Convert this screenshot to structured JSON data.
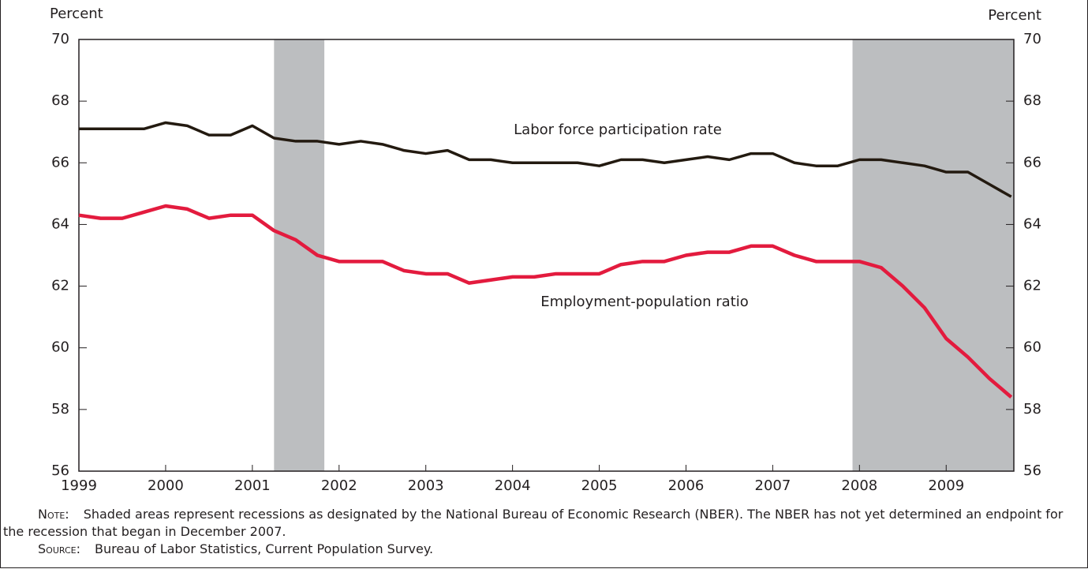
{
  "chart_data": {
    "type": "line",
    "y_label_left": "Percent",
    "y_label_right": "Percent",
    "x": [
      1999,
      1999.25,
      1999.5,
      1999.75,
      2000,
      2000.25,
      2000.5,
      2000.75,
      2001,
      2001.25,
      2001.5,
      2001.75,
      2002,
      2002.25,
      2002.5,
      2002.75,
      2003,
      2003.25,
      2003.5,
      2003.75,
      2004,
      2004.25,
      2004.5,
      2004.75,
      2005,
      2005.25,
      2005.5,
      2005.75,
      2006,
      2006.25,
      2006.5,
      2006.75,
      2007,
      2007.25,
      2007.5,
      2007.75,
      2008,
      2008.25,
      2008.5,
      2008.75,
      2009,
      2009.25,
      2009.5,
      2009.75
    ],
    "series": [
      {
        "name": "Labor force participation rate",
        "color": "#231a10",
        "values": [
          67.1,
          67.1,
          67.1,
          67.1,
          67.3,
          67.2,
          66.9,
          66.9,
          67.2,
          66.8,
          66.7,
          66.7,
          66.6,
          66.7,
          66.6,
          66.4,
          66.3,
          66.4,
          66.1,
          66.1,
          66.0,
          66.0,
          66.0,
          66.0,
          65.9,
          66.1,
          66.1,
          66.0,
          66.1,
          66.2,
          66.1,
          66.3,
          66.3,
          66.0,
          65.9,
          65.9,
          66.1,
          66.1,
          66.0,
          65.9,
          65.7,
          65.7,
          65.3,
          64.9
        ]
      },
      {
        "name": "Employment-population ratio",
        "color": "#e31b3e",
        "values": [
          64.3,
          64.2,
          64.2,
          64.4,
          64.6,
          64.5,
          64.2,
          64.3,
          64.3,
          63.8,
          63.5,
          63.0,
          62.8,
          62.8,
          62.8,
          62.5,
          62.4,
          62.4,
          62.1,
          62.2,
          62.3,
          62.3,
          62.4,
          62.4,
          62.4,
          62.7,
          62.8,
          62.8,
          63.0,
          63.1,
          63.1,
          63.3,
          63.3,
          63.0,
          62.8,
          62.8,
          62.8,
          62.6,
          62.0,
          61.3,
          60.3,
          59.7,
          59.0,
          58.4
        ]
      }
    ],
    "recessions": [
      [
        2001.25,
        2001.83
      ],
      [
        2007.92,
        2009.78
      ]
    ],
    "recession_color": "#bcbec0",
    "xlim": [
      1999,
      2009.78
    ],
    "xticks": [
      1999,
      2000,
      2001,
      2002,
      2003,
      2004,
      2005,
      2006,
      2007,
      2008,
      2009
    ],
    "ylim": [
      56,
      70
    ],
    "yticks": [
      56,
      58,
      60,
      62,
      64,
      66,
      68,
      70
    ],
    "grid": false,
    "note_label": "Note:",
    "note": "Shaded areas represent recessions as designated by the National Bureau of Economic Research (NBER). The NBER has not yet determined an endpoint for the recession that began in December 2007.",
    "source_label": "Source:",
    "source": "Bureau of Labor Statistics, Current Population Survey."
  }
}
